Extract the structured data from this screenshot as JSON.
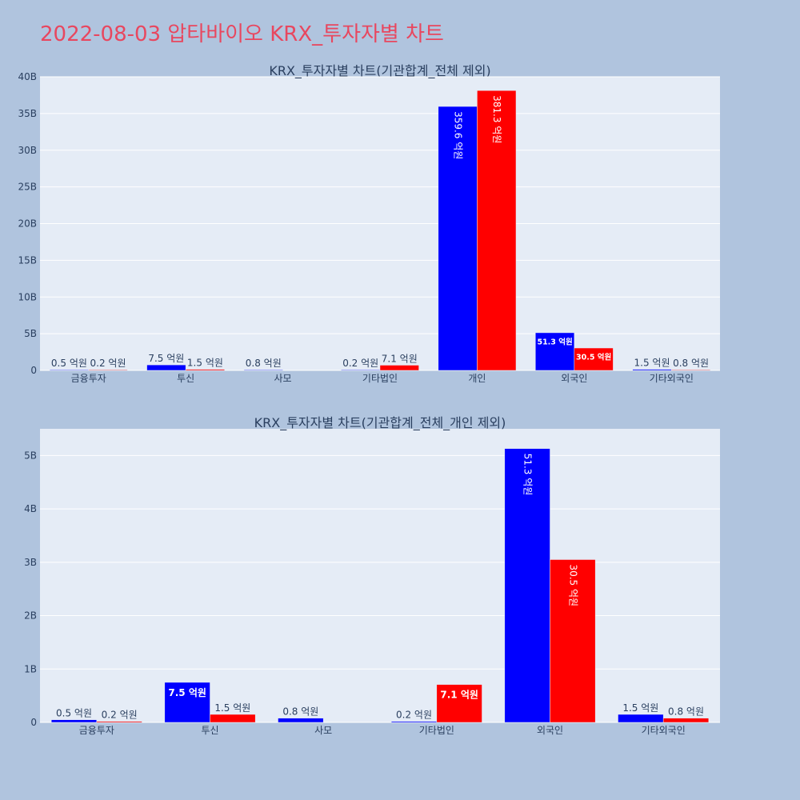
{
  "page": {
    "title": "2022-08-03 압타바이오 KRX_투자자별 차트"
  },
  "colors": {
    "buy": "#0000ff",
    "sell": "#ff0000",
    "background": "#b0c4de",
    "plot_bg": "#e5ecf6",
    "title": "#e8475f"
  },
  "chart_data": [
    {
      "type": "bar",
      "title": "KRX_투자자별 차트(기관합계_전체 제외)",
      "categories": [
        "금융투자",
        "투신",
        "사모",
        "기타법인",
        "개인",
        "외국인",
        "기타외국인"
      ],
      "series": [
        {
          "values": [
            0.05,
            0.75,
            0.08,
            0.02,
            35.96,
            5.13,
            0.15
          ],
          "labels": [
            "0.5 억원",
            "7.5 억원",
            "0.8 억원",
            "0.2 억원",
            "359.6 억원",
            "51.3 억원",
            "1.5 억원"
          ]
        },
        {
          "values": [
            0.02,
            0.15,
            null,
            0.71,
            38.13,
            3.05,
            0.08
          ],
          "labels": [
            "0.2 억원",
            "1.5 억원",
            "",
            "7.1 억원",
            "381.3 억원",
            "30.5 억원",
            "0.8 억원"
          ]
        }
      ],
      "ylim": [
        0,
        40
      ],
      "yticks": [
        0,
        5,
        10,
        15,
        20,
        25,
        30,
        35,
        40
      ],
      "ytick_labels": [
        "0",
        "5B",
        "10B",
        "15B",
        "20B",
        "25B",
        "30B",
        "35B",
        "40B"
      ],
      "grid": true
    },
    {
      "type": "bar",
      "title": "KRX_투자자별 차트(기관합계_전체_개인 제외)",
      "categories": [
        "금융투자",
        "투신",
        "사모",
        "기타법인",
        "외국인",
        "기타외국인"
      ],
      "series": [
        {
          "values": [
            0.05,
            0.75,
            0.08,
            0.02,
            5.13,
            0.15
          ],
          "labels": [
            "0.5 억원",
            "7.5 억원",
            "0.8 억원",
            "0.2 억원",
            "51.3 억원",
            "1.5 억원"
          ]
        },
        {
          "values": [
            0.02,
            0.15,
            null,
            0.71,
            3.05,
            0.08
          ],
          "labels": [
            "0.2 억원",
            "1.5 억원",
            "",
            "7.1 억원",
            "30.5 억원",
            "0.8 억원"
          ]
        }
      ],
      "ylim": [
        0,
        5.5
      ],
      "yticks": [
        0,
        1,
        2,
        3,
        4,
        5
      ],
      "ytick_labels": [
        "0",
        "1B",
        "2B",
        "3B",
        "4B",
        "5B"
      ],
      "grid": true
    }
  ]
}
